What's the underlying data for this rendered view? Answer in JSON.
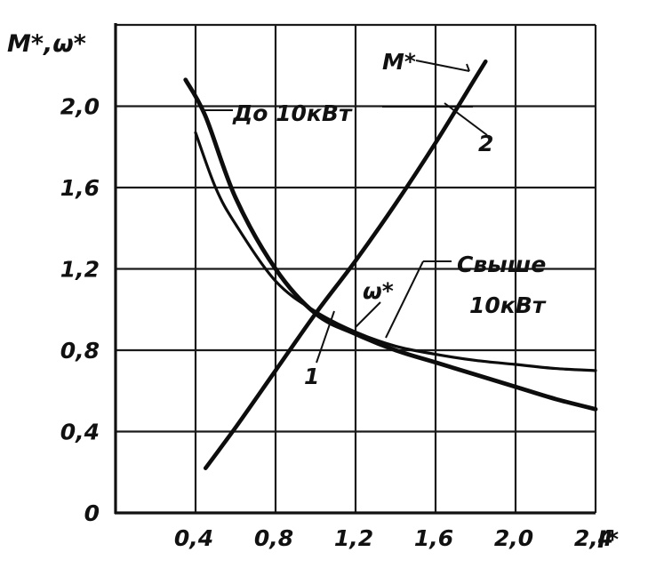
{
  "chart_data": {
    "type": "line",
    "xlabel": "I*",
    "ylabel": "M*,ω*",
    "xlim": [
      0,
      2.4
    ],
    "ylim": [
      0,
      2.4
    ],
    "grid": true,
    "x_ticks": [
      "0,4",
      "0,8",
      "1,2",
      "1,6",
      "2,0",
      "2,4"
    ],
    "y_ticks": [
      "0",
      "0,4",
      "0,8",
      "1,2",
      "1,6",
      "2,0"
    ],
    "series": [
      {
        "name": "M*",
        "x": [
          0.45,
          0.6,
          0.8,
          1.0,
          1.2,
          1.4,
          1.6,
          1.8,
          1.85
        ],
        "y": [
          0.22,
          0.42,
          0.7,
          0.98,
          1.24,
          1.52,
          1.82,
          2.14,
          2.22
        ]
      },
      {
        "x": [
          0.35,
          0.45,
          0.6,
          0.8,
          1.0,
          1.2,
          1.4,
          1.6,
          1.8,
          2.0,
          2.2,
          2.4
        ],
        "y": [
          2.13,
          1.95,
          1.55,
          1.2,
          0.98,
          0.88,
          0.8,
          0.74,
          0.68,
          0.62,
          0.56,
          0.51
        ]
      },
      {
        "x": [
          0.4,
          0.5,
          0.6,
          0.8,
          1.0,
          1.2,
          1.4,
          1.6,
          1.8,
          2.0,
          2.2,
          2.4
        ],
        "y": [
          1.87,
          1.6,
          1.42,
          1.14,
          0.99,
          0.89,
          0.82,
          0.78,
          0.75,
          0.73,
          0.71,
          0.7
        ]
      }
    ],
    "annotations": {
      "m_label": "M*",
      "curve_2": "2",
      "up_to": "До 10кВт",
      "over_line1": "Свыше",
      "over_line2": "10кВт",
      "omega": "ω*",
      "curve_1": "1"
    }
  }
}
